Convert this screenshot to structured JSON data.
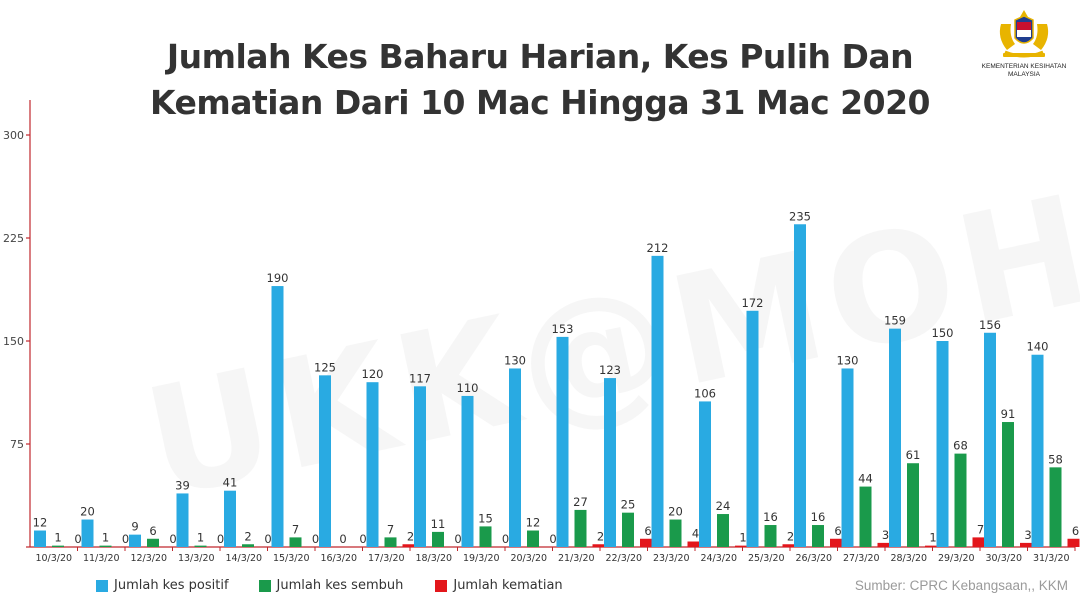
{
  "header": {
    "title_line1": "Jumlah Kes Baharu Harian, Kes Pulih Dan",
    "title_line2": "Kematian Dari 10 Mac Hingga 31 Mac 2020"
  },
  "logo": {
    "line1": "KEMENTERIAN KESIHATAN",
    "line2": "MALAYSIA"
  },
  "watermark": "UKK@MOH",
  "source": "Sumber: CPRC Kebangsaan,, KKM",
  "colors": {
    "positive": "#29aae2",
    "recovered": "#1a9a4b",
    "deaths": "#e3161b",
    "axis": "#c0272d"
  },
  "chart_data": {
    "type": "bar",
    "title": "Jumlah Kes Baharu Harian, Kes Pulih Dan Kematian Dari 10 Mac Hingga 31 Mac 2020",
    "xlabel": "",
    "ylabel": "",
    "ylim": [
      0,
      300
    ],
    "yticks": [
      0,
      75,
      150,
      225,
      300
    ],
    "ytick_labels": [
      "",
      "75",
      "150",
      "225",
      "300"
    ],
    "grid": false,
    "legend_position": "bottom-left",
    "categories": [
      "10/3/20",
      "11/3/20",
      "12/3/20",
      "13/3/20",
      "14/3/20",
      "15/3/20",
      "16/3/20",
      "17/3/20",
      "18/3/20",
      "19/3/20",
      "20/3/20",
      "21/3/20",
      "22/3/20",
      "23/3/20",
      "24/3/20",
      "25/3/20",
      "26/3/20",
      "27/3/20",
      "28/3/20",
      "29/3/20",
      "30/3/20",
      "31/3/20"
    ],
    "series": [
      {
        "name": "Jumlah kes positif",
        "color": "#29aae2",
        "values": [
          12,
          20,
          9,
          39,
          41,
          190,
          125,
          120,
          117,
          110,
          130,
          153,
          123,
          212,
          106,
          172,
          235,
          130,
          159,
          150,
          156,
          140
        ]
      },
      {
        "name": "Jumlah kes sembuh",
        "color": "#1a9a4b",
        "values": [
          1,
          1,
          6,
          1,
          2,
          7,
          0,
          7,
          11,
          15,
          12,
          27,
          25,
          20,
          24,
          16,
          16,
          44,
          61,
          68,
          91,
          58
        ]
      },
      {
        "name": "Jumlah kematian",
        "color": "#e3161b",
        "values": [
          0,
          0,
          0,
          0,
          0,
          0,
          0,
          2,
          0,
          0,
          0,
          2,
          6,
          4,
          1,
          2,
          6,
          3,
          1,
          7,
          3,
          6
        ]
      }
    ]
  }
}
